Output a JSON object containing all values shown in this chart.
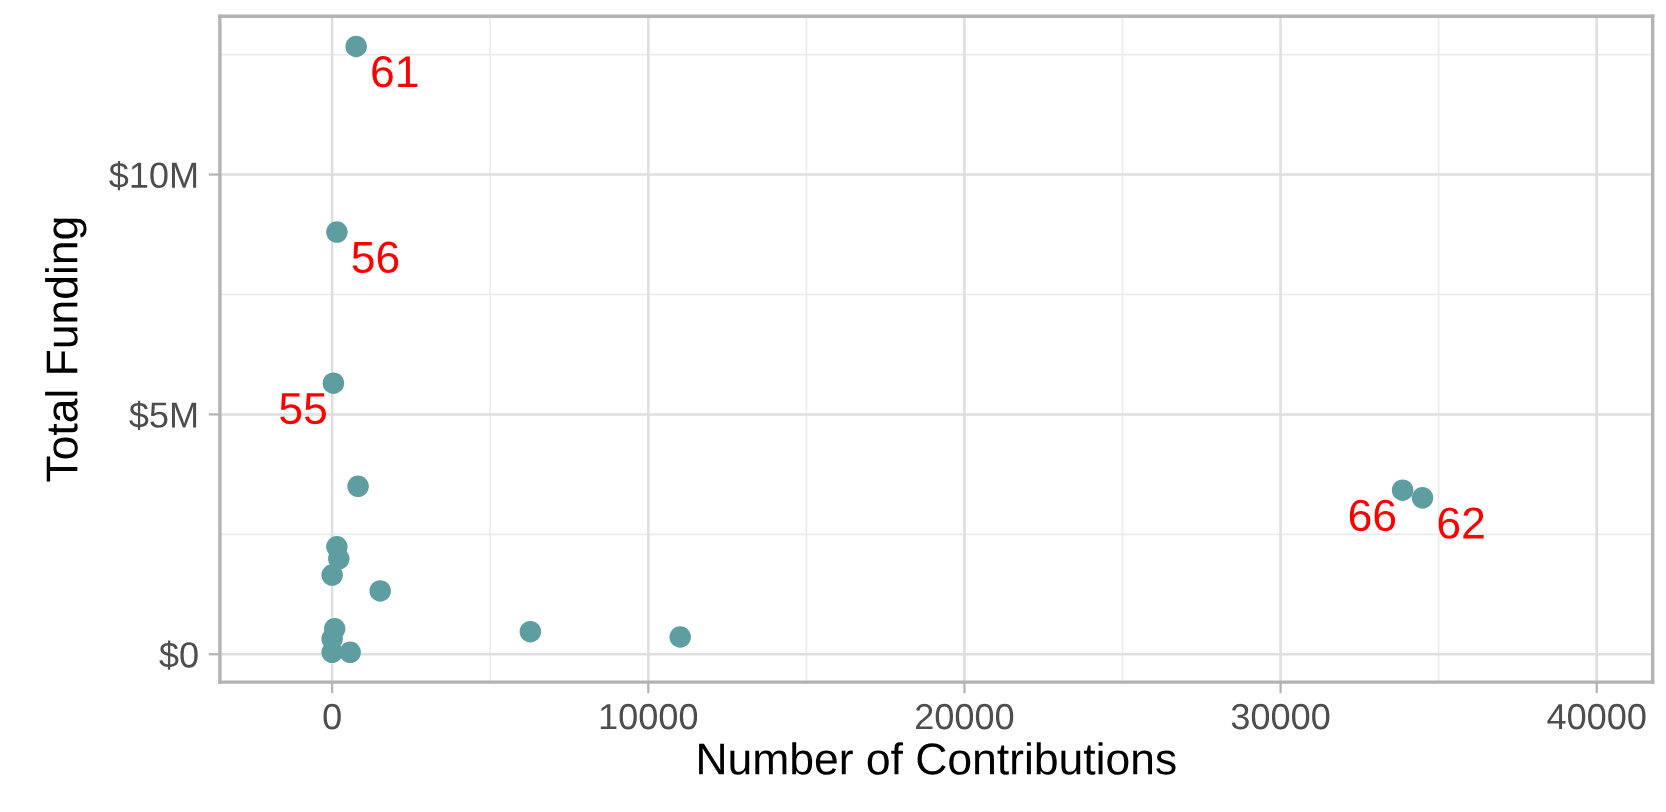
{
  "chart_data": {
    "type": "scatter",
    "xlabel": "Number of Contributions",
    "ylabel": "Total Funding",
    "x": [
      760,
      150,
      40,
      820,
      150,
      210,
      0,
      1520,
      80,
      0,
      0,
      570,
      6270,
      11010,
      33860,
      34490
    ],
    "values": [
      12.67,
      8.8,
      5.65,
      3.5,
      2.24,
      1.99,
      1.65,
      1.32,
      0.53,
      0.32,
      0.04,
      0.04,
      0.47,
      0.36,
      3.42,
      3.26
    ],
    "color": "#5f9ea0",
    "marker": "circle",
    "grid": true,
    "legend": false,
    "xlim": [
      -3550,
      41770
    ],
    "xticks": [
      0,
      10000,
      20000,
      30000,
      40000
    ],
    "ylim": [
      -0.58,
      13.3
    ],
    "yticks": [
      {
        "value": 0,
        "label": "$0"
      },
      {
        "value": 5,
        "label": "$5M"
      },
      {
        "value": 10,
        "label": "$10M"
      }
    ],
    "annotations": [
      {
        "text": "61",
        "x": 760,
        "y": 12.67
      },
      {
        "text": "56",
        "x": 150,
        "y": 8.8
      },
      {
        "text": "55",
        "x": 40,
        "y": 5.65
      },
      {
        "text": "66",
        "x": 33860,
        "y": 3.42
      },
      {
        "text": "62",
        "x": 34490,
        "y": 3.26
      }
    ]
  }
}
